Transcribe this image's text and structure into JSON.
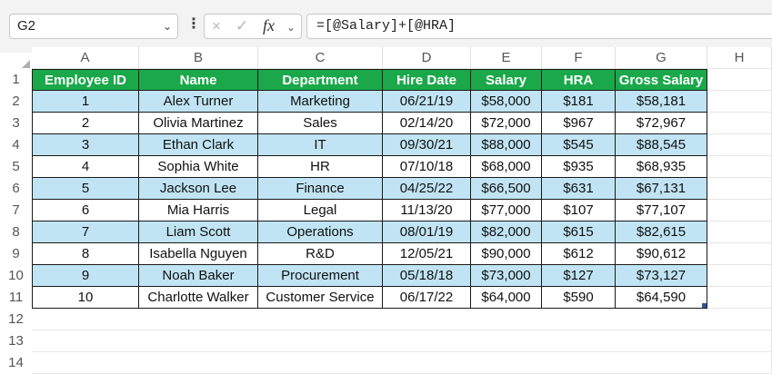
{
  "name_box": {
    "value": "G2"
  },
  "formula_bar": {
    "cancel_icon": "×",
    "enter_icon": "✓",
    "fx_label": "fx",
    "formula": "=[@Salary]+[@HRA]"
  },
  "columns": [
    "A",
    "B",
    "C",
    "D",
    "E",
    "F",
    "G",
    "H"
  ],
  "rows": [
    "1",
    "2",
    "3",
    "4",
    "5",
    "6",
    "7",
    "8",
    "9",
    "10",
    "11",
    "12",
    "13",
    "14"
  ],
  "colors": {
    "header_bg": "#1aa84a",
    "band_bg": "#c0e4f3",
    "selection": "#2f5597"
  },
  "table": {
    "headers": [
      "Employee ID",
      "Name",
      "Department",
      "Hire Date",
      "Salary",
      "HRA",
      "Gross Salary"
    ],
    "rows": [
      [
        "1",
        "Alex Turner",
        "Marketing",
        "06/21/19",
        "$58,000",
        "$181",
        "$58,181"
      ],
      [
        "2",
        "Olivia Martinez",
        "Sales",
        "02/14/20",
        "$72,000",
        "$967",
        "$72,967"
      ],
      [
        "3",
        "Ethan Clark",
        "IT",
        "09/30/21",
        "$88,000",
        "$545",
        "$88,545"
      ],
      [
        "4",
        "Sophia White",
        "HR",
        "07/10/18",
        "$68,000",
        "$935",
        "$68,935"
      ],
      [
        "5",
        "Jackson Lee",
        "Finance",
        "04/25/22",
        "$66,500",
        "$631",
        "$67,131"
      ],
      [
        "6",
        "Mia Harris",
        "Legal",
        "11/13/20",
        "$77,000",
        "$107",
        "$77,107"
      ],
      [
        "7",
        "Liam Scott",
        "Operations",
        "08/01/19",
        "$82,000",
        "$615",
        "$82,615"
      ],
      [
        "8",
        "Isabella Nguyen",
        "R&D",
        "12/05/21",
        "$90,000",
        "$612",
        "$90,612"
      ],
      [
        "9",
        "Noah Baker",
        "Procurement",
        "05/18/18",
        "$73,000",
        "$127",
        "$73,127"
      ],
      [
        "10",
        "Charlotte Walker",
        "Customer Service",
        "06/17/22",
        "$64,000",
        "$590",
        "$64,590"
      ]
    ]
  }
}
